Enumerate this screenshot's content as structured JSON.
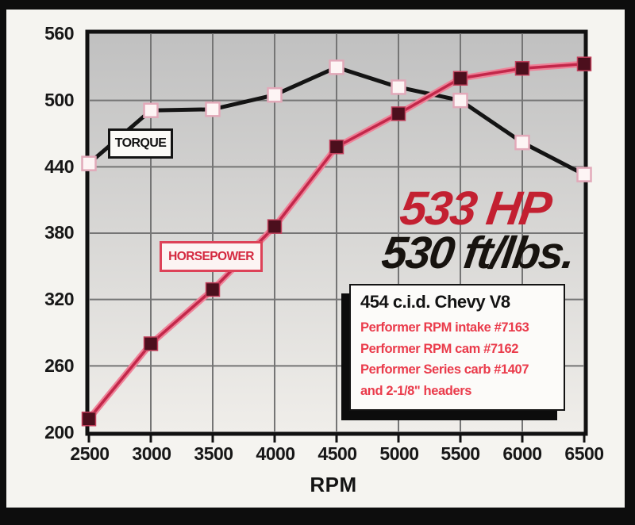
{
  "chart_data": {
    "type": "line",
    "title": "",
    "xlabel": "RPM",
    "ylabel": "",
    "xlim": [
      2500,
      6500
    ],
    "ylim": [
      200,
      560
    ],
    "grid": true,
    "x": [
      2500,
      3000,
      3500,
      4000,
      4500,
      5000,
      5500,
      6000,
      6500
    ],
    "x_tick_labels": [
      "2500",
      "3000",
      "3500",
      "4000",
      "4500",
      "5000",
      "5500",
      "6000",
      "6500"
    ],
    "y_ticks": [
      560,
      500,
      440,
      380,
      320,
      260,
      200
    ],
    "y_tick_labels": [
      "560",
      "500",
      "440",
      "380",
      "320",
      "260",
      "200"
    ],
    "plot_bg_top": "#c0c0c0",
    "plot_bg_bottom": "#f0eeea",
    "grid_color": "#757575",
    "border_color": "#111111",
    "series": [
      {
        "name": "TORQUE",
        "values": [
          443,
          491,
          492,
          505,
          530,
          512,
          500,
          462,
          433
        ],
        "line_color": "#141414",
        "marker_fill": "#fdf4f4",
        "marker_stroke": "#e2a9b9"
      },
      {
        "name": "HORSEPOWER",
        "values": [
          212,
          280,
          329,
          386,
          458,
          488,
          520,
          529,
          533
        ],
        "line_color": "#c3274a",
        "line_outer_color": "#ee8298",
        "marker_fill": "#4c0f1d",
        "marker_stroke": "#c2405c"
      }
    ]
  },
  "annotations": {
    "hp_headline": "533 HP",
    "torque_headline": "530 ft/lbs.",
    "hp_headline_color": "#c32031",
    "torque_headline_color": "#17130f"
  },
  "info_box": {
    "title": "454 c.i.d. Chevy V8",
    "lines": [
      "Performer RPM intake #7163",
      "Performer RPM cam #7162",
      "Performer Series carb #1407",
      "and 2-1/8\" headers"
    ],
    "line_color": "#ea3b4b"
  }
}
